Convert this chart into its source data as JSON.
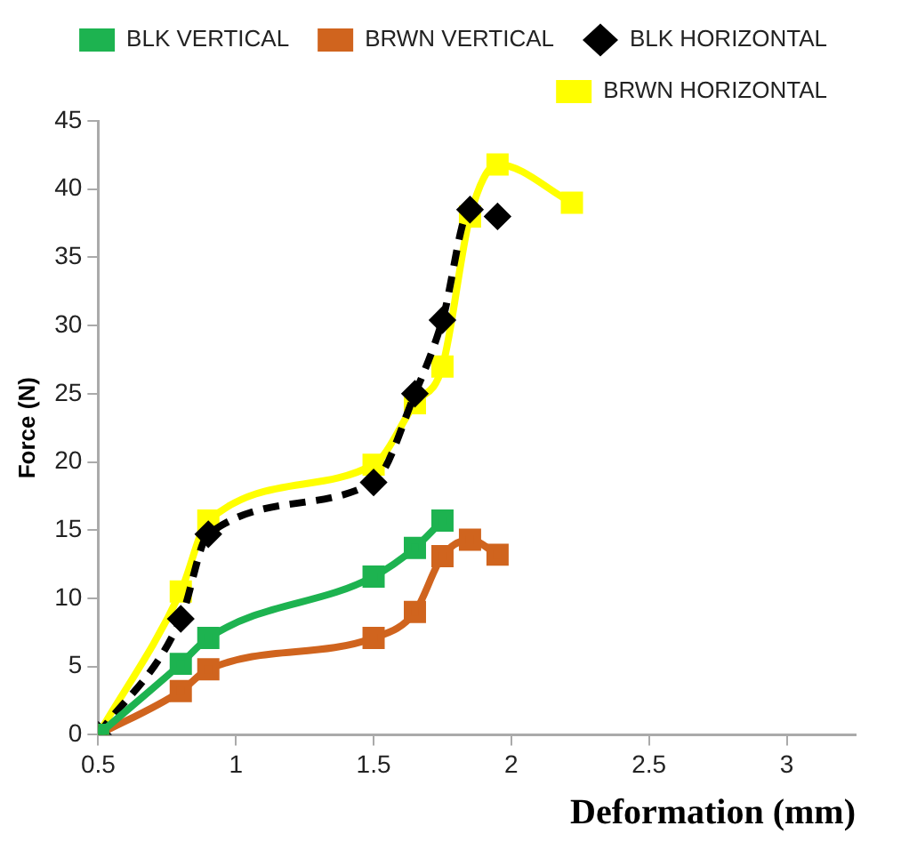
{
  "chart_data": {
    "type": "line",
    "xlabel": "Deformation (mm)",
    "ylabel": "Force (N)",
    "xlim": [
      0.5,
      3.25
    ],
    "xticks": [
      0.5,
      1,
      1.5,
      2,
      2.5,
      3
    ],
    "ylim": [
      0,
      45
    ],
    "yticks": [
      0,
      5,
      10,
      15,
      20,
      25,
      30,
      35,
      40,
      45
    ],
    "grid": false,
    "legend": "top",
    "marker": "square",
    "line_style": "solid",
    "series": [
      {
        "name": "BLK VERTICAL",
        "color": "#1db350",
        "x": [
          0.5,
          0.8,
          0.9,
          1.5,
          1.65,
          1.75
        ],
        "values": [
          0,
          5.2,
          7.1,
          11.6,
          13.7,
          15.7
        ]
      },
      {
        "name": "BRWN VERTICAL",
        "color": "#d0641e",
        "x": [
          0.5,
          0.8,
          0.9,
          1.5,
          1.65,
          1.75,
          1.85,
          1.95
        ],
        "values": [
          0,
          3.2,
          4.8,
          7.1,
          9,
          13.1,
          14.3,
          13.2
        ]
      },
      {
        "name": "BLK HORIZONTAL",
        "color": "#000000",
        "marker": "diamond",
        "line_style": "dashed",
        "x": [
          0.5,
          0.8,
          0.9,
          1.5,
          1.65,
          1.75,
          1.85,
          1.95
        ],
        "values": [
          0,
          8.5,
          14.7,
          18.5,
          25,
          30.4,
          38.5,
          38
        ]
      },
      {
        "name": "BRWN HORIZONTAL",
        "color": "#ffff00",
        "x": [
          0.5,
          0.8,
          0.9,
          1.5,
          1.65,
          1.75,
          1.85,
          1.95,
          2.22
        ],
        "values": [
          0,
          10.5,
          15.7,
          19.8,
          24.3,
          27,
          38,
          41.8,
          39
        ]
      }
    ]
  }
}
